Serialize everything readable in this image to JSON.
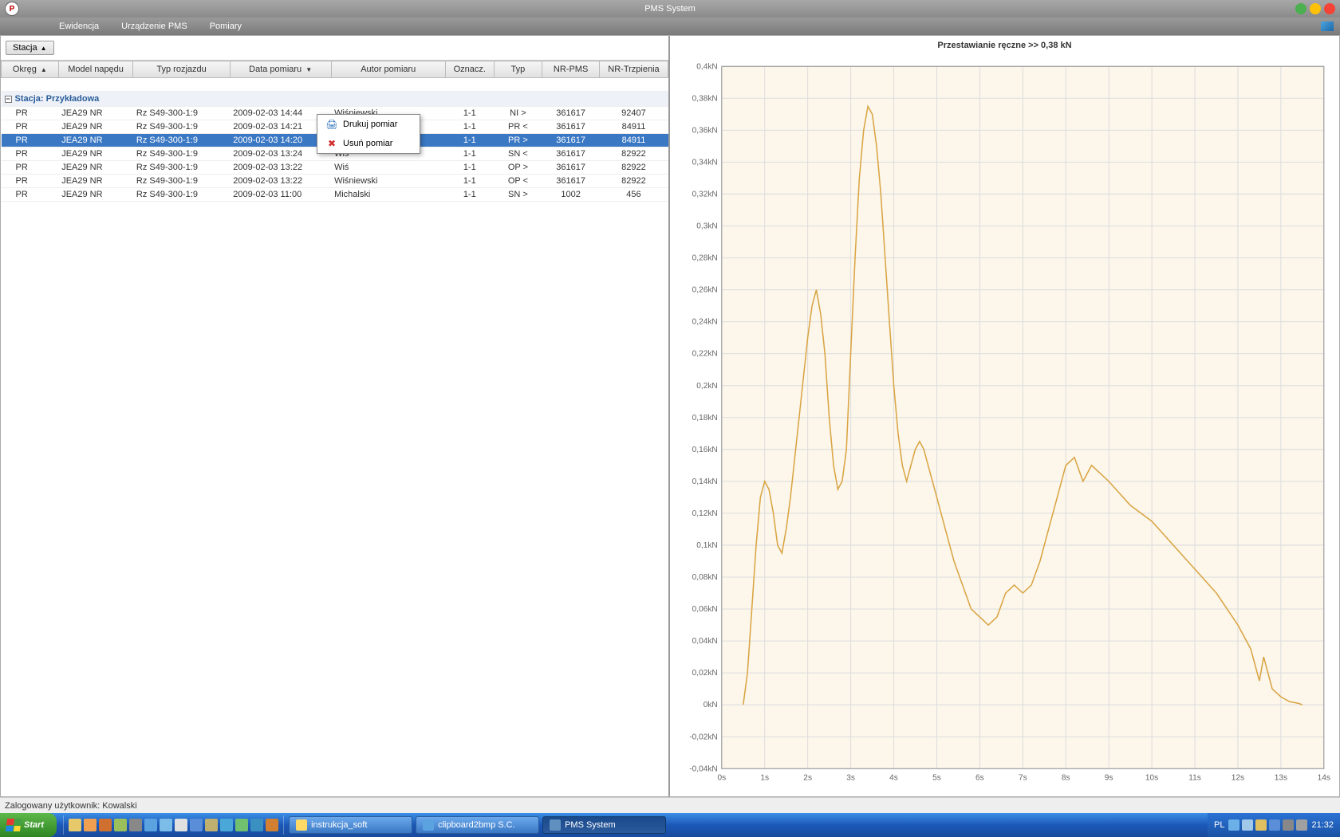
{
  "app": {
    "title": "PMS System",
    "logo_text": "P"
  },
  "menubar": {
    "items": [
      "Ewidencja",
      "Urządzenie PMS",
      "Pomiary"
    ]
  },
  "leftPane": {
    "groupButton": {
      "label": "Stacja",
      "arrow": "▲"
    },
    "columns": [
      {
        "label": "Okręg",
        "sort": "▲"
      },
      {
        "label": "Model napędu"
      },
      {
        "label": "Typ rozjazdu"
      },
      {
        "label": "Data pomiaru",
        "sort": "▼"
      },
      {
        "label": "Autor pomiaru"
      },
      {
        "label": "Oznacz."
      },
      {
        "label": "Typ"
      },
      {
        "label": "NR-PMS"
      },
      {
        "label": "NR-Trzpienia"
      }
    ],
    "groupLabel": "Stacja: Przykładowa",
    "rows": [
      {
        "okreg": "PR",
        "model": "JEA29 NR",
        "typr": "Rz S49-300-1:9",
        "data": "2009-02-03 14:44",
        "autor": "Wiśniewski",
        "oznacz": "1-1",
        "typ": "NI >",
        "nrpms": "361617",
        "nrtrz": "92407"
      },
      {
        "okreg": "PR",
        "model": "JEA29 NR",
        "typr": "Rz S49-300-1:9",
        "data": "2009-02-03 14:21",
        "autor": "Wiśniewski",
        "oznacz": "1-1",
        "typ": "PR <",
        "nrpms": "361617",
        "nrtrz": "84911"
      },
      {
        "okreg": "PR",
        "model": "JEA29 NR",
        "typr": "Rz S49-300-1:9",
        "data": "2009-02-03 14:20",
        "autor": "Wiś",
        "oznacz": "1-1",
        "typ": "PR >",
        "nrpms": "361617",
        "nrtrz": "84911",
        "selected": true
      },
      {
        "okreg": "PR",
        "model": "JEA29 NR",
        "typr": "Rz S49-300-1:9",
        "data": "2009-02-03 13:24",
        "autor": "Wiś",
        "oznacz": "1-1",
        "typ": "SN <",
        "nrpms": "361617",
        "nrtrz": "82922"
      },
      {
        "okreg": "PR",
        "model": "JEA29 NR",
        "typr": "Rz S49-300-1:9",
        "data": "2009-02-03 13:22",
        "autor": "Wiś",
        "oznacz": "1-1",
        "typ": "OP >",
        "nrpms": "361617",
        "nrtrz": "82922"
      },
      {
        "okreg": "PR",
        "model": "JEA29 NR",
        "typr": "Rz S49-300-1:9",
        "data": "2009-02-03 13:22",
        "autor": "Wiśniewski",
        "oznacz": "1-1",
        "typ": "OP <",
        "nrpms": "361617",
        "nrtrz": "82922"
      },
      {
        "okreg": "PR",
        "model": "JEA29 NR",
        "typr": "Rz S49-300-1:9",
        "data": "2009-02-03 11:00",
        "autor": "Michalski",
        "oznacz": "1-1",
        "typ": "SN >",
        "nrpms": "1002",
        "nrtrz": "456"
      }
    ],
    "contextMenu": {
      "items": [
        {
          "icon": "🖨",
          "iconClass": "cm-print",
          "label": "Drukuj pomiar"
        },
        {
          "icon": "✖",
          "iconClass": "cm-delete",
          "label": "Usuń pomiar"
        }
      ]
    }
  },
  "chart": {
    "title": "Przestawianie ręczne >> 0,38 kN",
    "type": "line",
    "background_color": "#fcf6eb",
    "grid_color": "#dddddd",
    "series_color": "#d9a441",
    "x": {
      "min": 0,
      "max": 14,
      "step": 1,
      "unit": "s",
      "labels": [
        "0s",
        "1s",
        "2s",
        "3s",
        "4s",
        "5s",
        "6s",
        "7s",
        "8s",
        "9s",
        "10s",
        "11s",
        "12s",
        "13s",
        "14s"
      ]
    },
    "y": {
      "min": -0.04,
      "max": 0.4,
      "step": 0.02,
      "unit": "kN",
      "labels": [
        "-0,04kN",
        "-0,02kN",
        "0kN",
        "0,02kN",
        "0,04kN",
        "0,06kN",
        "0,08kN",
        "0,1kN",
        "0,12kN",
        "0,14kN",
        "0,16kN",
        "0,18kN",
        "0,2kN",
        "0,22kN",
        "0,24kN",
        "0,26kN",
        "0,28kN",
        "0,3kN",
        "0,32kN",
        "0,34kN",
        "0,36kN",
        "0,38kN",
        "0,4kN"
      ]
    },
    "data": [
      [
        0.5,
        0.0
      ],
      [
        0.6,
        0.02
      ],
      [
        0.7,
        0.06
      ],
      [
        0.8,
        0.1
      ],
      [
        0.9,
        0.13
      ],
      [
        1.0,
        0.14
      ],
      [
        1.1,
        0.135
      ],
      [
        1.2,
        0.12
      ],
      [
        1.3,
        0.1
      ],
      [
        1.4,
        0.095
      ],
      [
        1.5,
        0.11
      ],
      [
        1.6,
        0.13
      ],
      [
        1.8,
        0.18
      ],
      [
        2.0,
        0.23
      ],
      [
        2.1,
        0.25
      ],
      [
        2.2,
        0.26
      ],
      [
        2.3,
        0.245
      ],
      [
        2.4,
        0.22
      ],
      [
        2.5,
        0.18
      ],
      [
        2.6,
        0.15
      ],
      [
        2.7,
        0.135
      ],
      [
        2.8,
        0.14
      ],
      [
        2.9,
        0.16
      ],
      [
        3.0,
        0.22
      ],
      [
        3.1,
        0.28
      ],
      [
        3.2,
        0.33
      ],
      [
        3.3,
        0.36
      ],
      [
        3.4,
        0.375
      ],
      [
        3.5,
        0.37
      ],
      [
        3.6,
        0.35
      ],
      [
        3.7,
        0.32
      ],
      [
        3.8,
        0.28
      ],
      [
        3.9,
        0.24
      ],
      [
        4.0,
        0.2
      ],
      [
        4.1,
        0.17
      ],
      [
        4.2,
        0.15
      ],
      [
        4.3,
        0.14
      ],
      [
        4.4,
        0.15
      ],
      [
        4.5,
        0.16
      ],
      [
        4.6,
        0.165
      ],
      [
        4.7,
        0.16
      ],
      [
        4.8,
        0.15
      ],
      [
        4.9,
        0.14
      ],
      [
        5.0,
        0.13
      ],
      [
        5.2,
        0.11
      ],
      [
        5.4,
        0.09
      ],
      [
        5.6,
        0.075
      ],
      [
        5.8,
        0.06
      ],
      [
        6.0,
        0.055
      ],
      [
        6.2,
        0.05
      ],
      [
        6.4,
        0.055
      ],
      [
        6.6,
        0.07
      ],
      [
        6.8,
        0.075
      ],
      [
        7.0,
        0.07
      ],
      [
        7.2,
        0.075
      ],
      [
        7.4,
        0.09
      ],
      [
        7.6,
        0.11
      ],
      [
        7.8,
        0.13
      ],
      [
        8.0,
        0.15
      ],
      [
        8.2,
        0.155
      ],
      [
        8.4,
        0.14
      ],
      [
        8.6,
        0.15
      ],
      [
        8.8,
        0.145
      ],
      [
        9.0,
        0.14
      ],
      [
        9.5,
        0.125
      ],
      [
        10.0,
        0.115
      ],
      [
        10.5,
        0.1
      ],
      [
        11.0,
        0.085
      ],
      [
        11.5,
        0.07
      ],
      [
        12.0,
        0.05
      ],
      [
        12.3,
        0.035
      ],
      [
        12.5,
        0.015
      ],
      [
        12.6,
        0.03
      ],
      [
        12.8,
        0.01
      ],
      [
        13.0,
        0.005
      ],
      [
        13.2,
        0.002
      ],
      [
        13.4,
        0.001
      ],
      [
        13.5,
        0.0
      ]
    ]
  },
  "status": {
    "text": "Zalogowany użytkownik: Kowalski"
  },
  "taskbar": {
    "start": "Start",
    "quicklaunch_colors": [
      "#e7c96b",
      "#f0a050",
      "#d07030",
      "#9bbf5a",
      "#888",
      "#5aa3e0",
      "#7bbde8",
      "#e0e0e0",
      "#5a8ed8",
      "#c0b070",
      "#4aa8d8",
      "#70c070",
      "#3a90c0",
      "#d08030"
    ],
    "tasks": [
      {
        "label": "instrukcja_soft",
        "iconColor": "#ffd966"
      },
      {
        "label": "clipboard2bmp S.C.",
        "iconColor": "#5aa3e0"
      },
      {
        "label": "PMS System",
        "iconColor": "#6090c0",
        "active": true
      }
    ],
    "lang": "PL",
    "systray_colors": [
      "#6bb0e8",
      "#a0c8e8",
      "#e0c060",
      "#5a8ed8",
      "#888",
      "#a0a0a0"
    ],
    "clock": "21:32"
  }
}
